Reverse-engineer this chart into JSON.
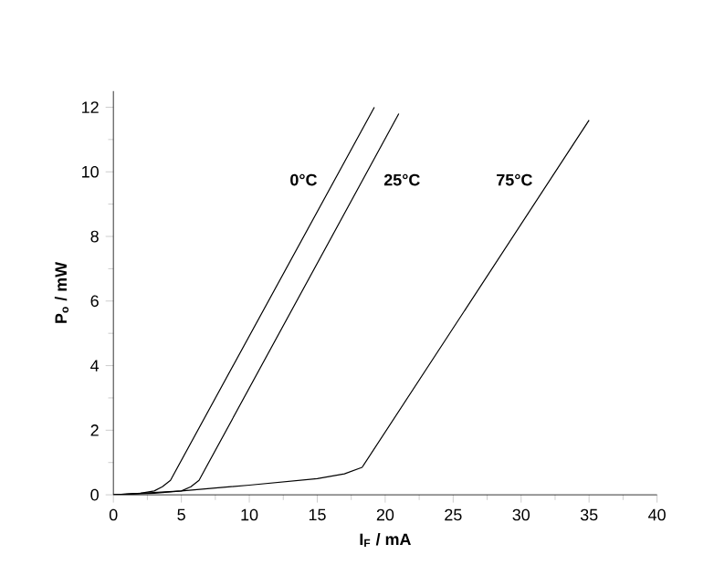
{
  "chart_data": {
    "type": "line",
    "xlabel": "I$_{F}$ / mA",
    "ylabel": "P$_{o}$ / mW",
    "xlim": [
      0,
      40
    ],
    "ylim": [
      0,
      12.5
    ],
    "xticks": [
      0,
      5,
      10,
      15,
      20,
      25,
      30,
      35,
      40
    ],
    "yticks": [
      0,
      2,
      4,
      6,
      8,
      10,
      12
    ],
    "grid": false,
    "series": [
      {
        "name": "0°C",
        "color": "#000000",
        "x": [
          0,
          2,
          3,
          3.6,
          4.2,
          19.2
        ],
        "values": [
          0,
          0.05,
          0.12,
          0.25,
          0.45,
          12
        ]
      },
      {
        "name": "25°C",
        "color": "#000000",
        "x": [
          0,
          3,
          5,
          5.7,
          6.3,
          21
        ],
        "values": [
          0,
          0.05,
          0.12,
          0.25,
          0.45,
          11.8
        ]
      },
      {
        "name": "75°C",
        "color": "#000000",
        "x": [
          0,
          5,
          10,
          15,
          17,
          18.3,
          35
        ],
        "values": [
          0,
          0.12,
          0.3,
          0.5,
          0.65,
          0.85,
          11.6
        ]
      }
    ]
  }
}
